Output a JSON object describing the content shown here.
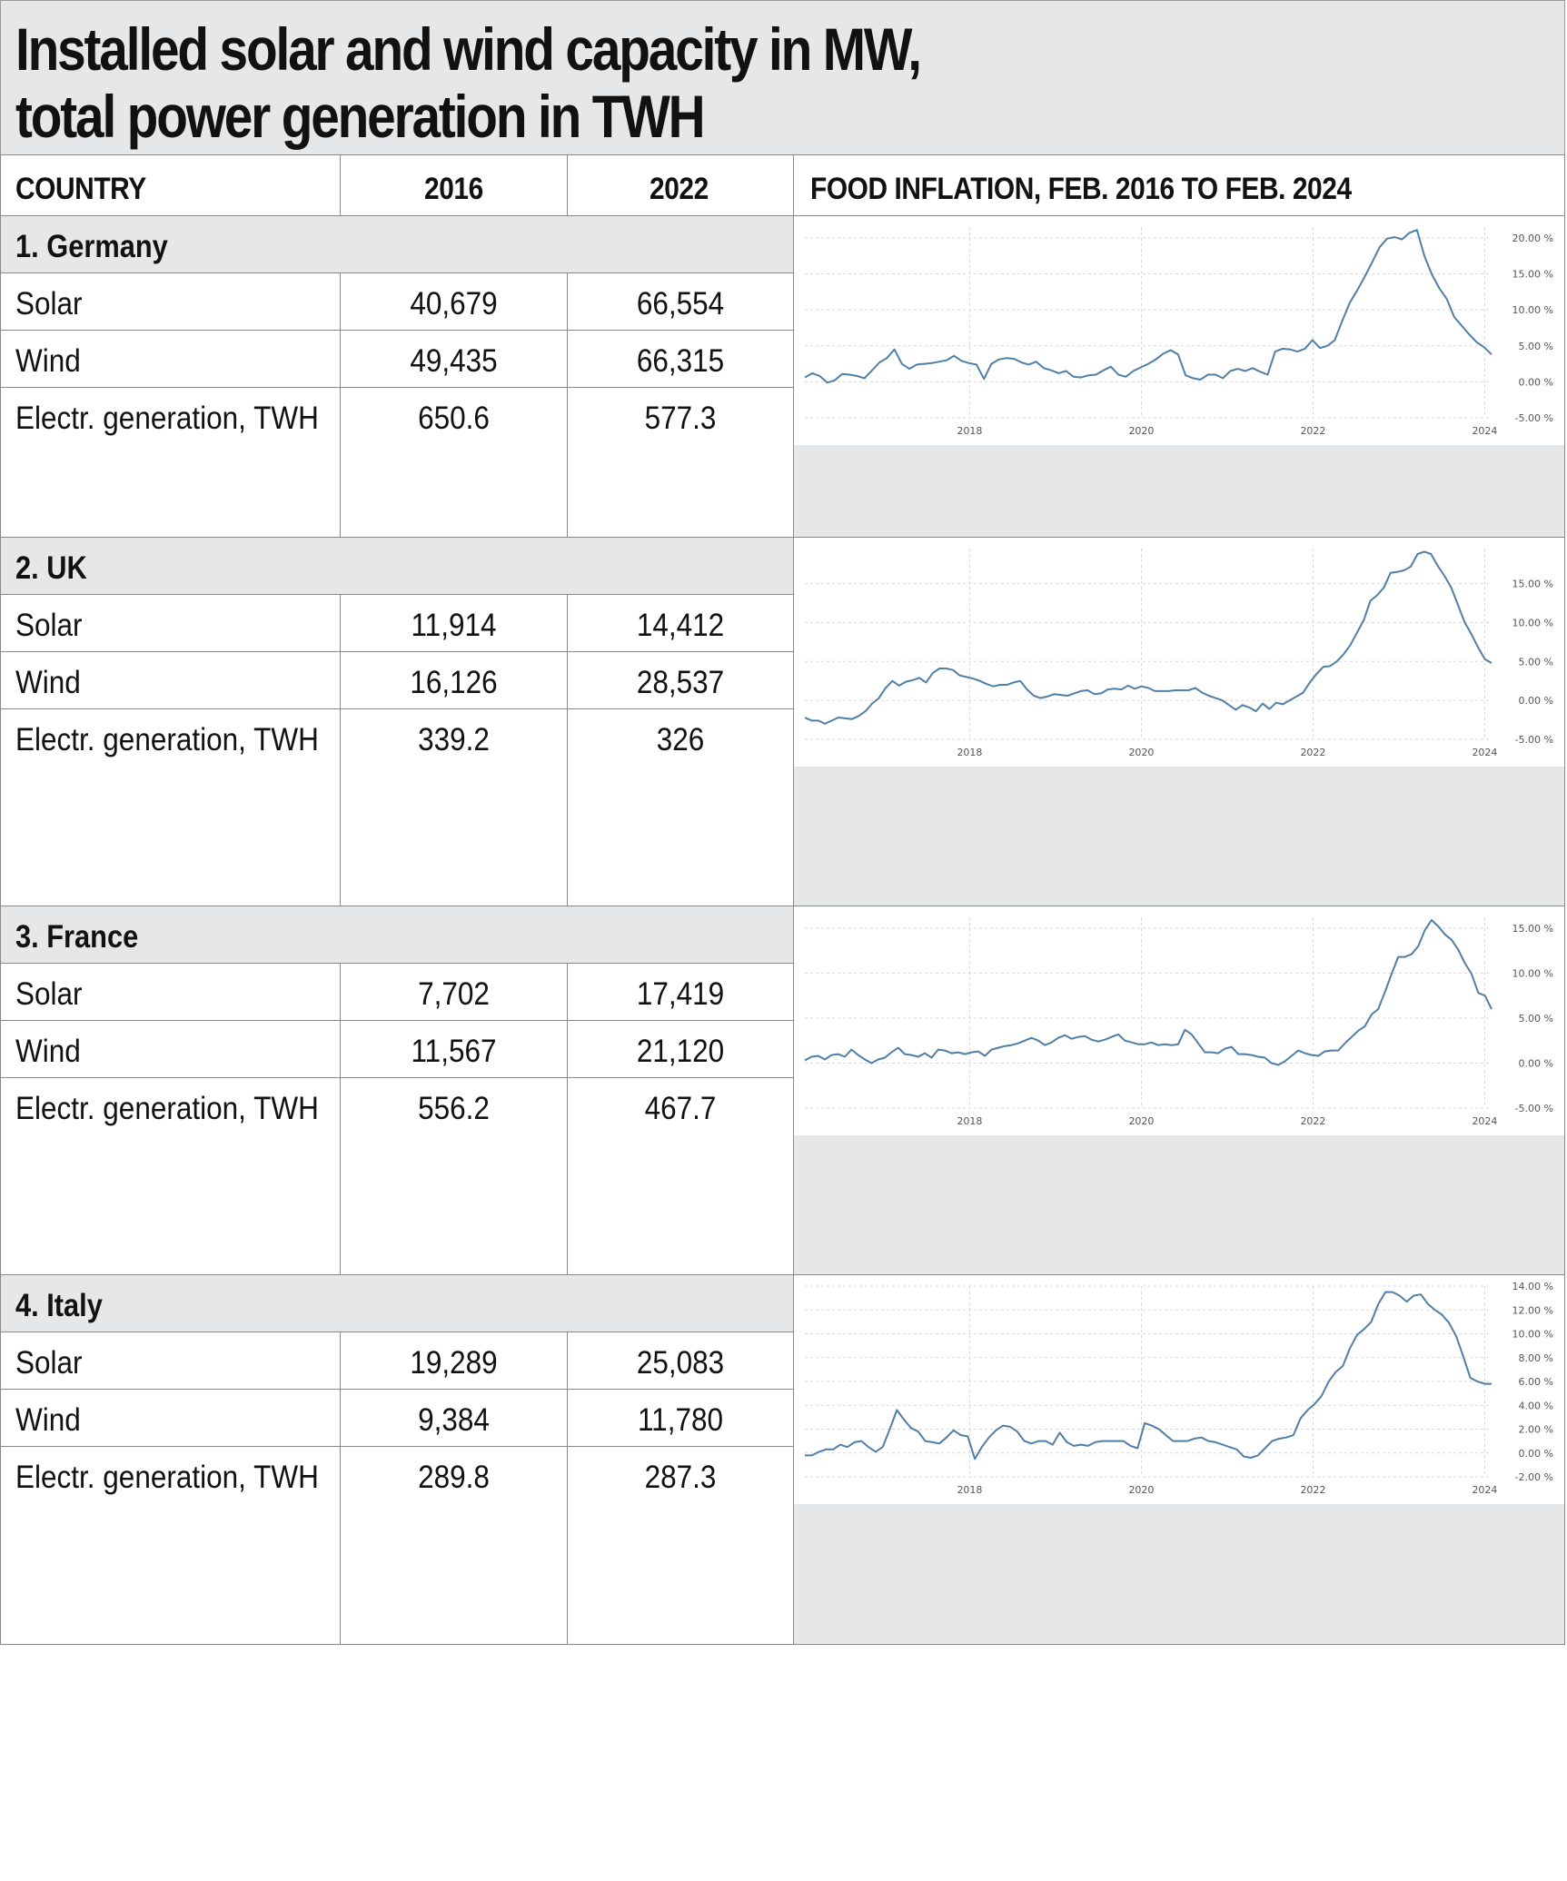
{
  "title": {
    "line1": "Installed solar and wind capacity in MW,",
    "line2": "total power generation in TWH"
  },
  "header": {
    "country": "COUNTRY",
    "year1": "2016",
    "year2": "2022",
    "chart": "FOOD INFLATION, FEB. 2016 TO FEB. 2024"
  },
  "countries": [
    {
      "name": "1. Germany",
      "rows": [
        {
          "label": "Solar",
          "v2016": "40,679",
          "v2022": "66,554"
        },
        {
          "label": "Wind",
          "v2016": "49,435",
          "v2022": "66,315"
        },
        {
          "label": " Electr. generation, TWH",
          "v2016": "650.6",
          "v2022": "577.3"
        }
      ]
    },
    {
      "name": "2. UK",
      "rows": [
        {
          "label": "Solar",
          "v2016": "11,914",
          "v2022": "14,412"
        },
        {
          "label": "Wind",
          "v2016": "16,126",
          "v2022": "28,537"
        },
        {
          "label": "Electr. generation, TWH",
          "v2016": "339.2",
          "v2022": "326"
        }
      ]
    },
    {
      "name": "3. France",
      "rows": [
        {
          "label": "Solar",
          "v2016": "7,702",
          "v2022": "17,419"
        },
        {
          "label": "Wind",
          "v2016": "11,567",
          "v2022": "21,120"
        },
        {
          "label": "Electr. generation, TWH",
          "v2016": "556.2",
          "v2022": "467.7"
        }
      ]
    },
    {
      "name": "4. Italy",
      "rows": [
        {
          "label": "Solar",
          "v2016": "19,289",
          "v2022": "25,083"
        },
        {
          "label": "Wind",
          "v2016": "9,384",
          "v2022": "11,780"
        },
        {
          "label": "Electr. generation, TWH",
          "v2016": "289.8",
          "v2022": "287.3"
        }
      ]
    }
  ],
  "chart_data": [
    {
      "type": "line",
      "country": "1. Germany",
      "line_color": "#4f7fa8",
      "x_start": 2016.08,
      "x_end": 2024.08,
      "xticks": [
        "2018",
        "2020",
        "2022",
        "2024"
      ],
      "xtick_values": [
        2018,
        2020,
        2022,
        2024
      ],
      "yticks": [
        "20.00 %",
        "15.00 %",
        "10.00 %",
        "5.00 %",
        "0.00 %",
        "-5.00 %"
      ],
      "ytick_values": [
        20,
        15,
        10,
        5,
        0,
        -5
      ],
      "ylim": [
        -5,
        21.5
      ],
      "grid": true,
      "values": [
        0.6,
        1.2,
        0.8,
        -0.1,
        0.2,
        1.1,
        1.0,
        0.8,
        0.5,
        1.6,
        2.7,
        3.3,
        4.5,
        2.5,
        1.8,
        2.4,
        2.5,
        2.6,
        2.8,
        3.0,
        3.6,
        2.9,
        2.6,
        2.4,
        0.4,
        2.5,
        3.1,
        3.3,
        3.2,
        2.7,
        2.4,
        2.8,
        1.9,
        1.6,
        1.2,
        1.5,
        0.7,
        0.6,
        0.9,
        1.0,
        1.6,
        2.1,
        1.0,
        0.7,
        1.5,
        2.0,
        2.5,
        3.1,
        3.9,
        4.4,
        3.8,
        0.9,
        0.5,
        0.3,
        1.0,
        1.0,
        0.5,
        1.5,
        1.8,
        1.5,
        1.9,
        1.4,
        1.0,
        4.2,
        4.6,
        4.5,
        4.2,
        4.6,
        5.8,
        4.7,
        5.0,
        5.8,
        8.5,
        11.0,
        12.7,
        14.6,
        16.6,
        18.7,
        19.9,
        20.1,
        19.8,
        20.7,
        21.1,
        17.5,
        14.9,
        13.0,
        11.5,
        9.0,
        7.8,
        6.6,
        5.5,
        4.8,
        3.8
      ]
    },
    {
      "type": "line",
      "country": "2. UK",
      "line_color": "#4f7fa8",
      "x_start": 2016.08,
      "x_end": 2024.08,
      "xticks": [
        "2018",
        "2020",
        "2022",
        "2024"
      ],
      "xtick_values": [
        2018,
        2020,
        2022,
        2024
      ],
      "yticks": [
        "15.00 %",
        "10.00 %",
        "5.00 %",
        "0.00 %",
        "-5.00 %"
      ],
      "ytick_values": [
        15,
        10,
        5,
        0,
        -5
      ],
      "ylim": [
        -5,
        19.5
      ],
      "grid": true,
      "values": [
        -2.2,
        -2.6,
        -2.6,
        -3.0,
        -2.6,
        -2.2,
        -2.3,
        -2.4,
        -2.0,
        -1.4,
        -0.4,
        0.3,
        1.6,
        2.5,
        1.9,
        2.4,
        2.6,
        2.9,
        2.3,
        3.5,
        4.1,
        4.1,
        3.9,
        3.2,
        3.0,
        2.8,
        2.5,
        2.1,
        1.8,
        2.0,
        2.0,
        2.3,
        2.5,
        1.4,
        0.6,
        0.3,
        0.5,
        0.8,
        0.7,
        0.6,
        0.9,
        1.2,
        1.3,
        0.8,
        0.9,
        1.4,
        1.5,
        1.4,
        1.9,
        1.5,
        1.8,
        1.6,
        1.2,
        1.2,
        1.2,
        1.3,
        1.3,
        1.3,
        1.6,
        1.0,
        0.6,
        0.3,
        0.0,
        -0.6,
        -1.2,
        -0.6,
        -0.9,
        -1.4,
        -0.4,
        -1.1,
        -0.3,
        -0.5,
        0.0,
        0.5,
        1.0,
        2.3,
        3.4,
        4.3,
        4.4,
        5.0,
        5.9,
        7.1,
        8.7,
        10.3,
        12.8,
        13.5,
        14.5,
        16.4,
        16.5,
        16.7,
        17.2,
        18.8,
        19.1,
        18.8,
        17.3,
        16.0,
        14.5,
        12.3,
        10.0,
        8.5,
        6.8,
        5.3,
        4.8
      ]
    },
    {
      "type": "line",
      "country": "3. France",
      "line_color": "#4f7fa8",
      "x_start": 2016.08,
      "x_end": 2024.08,
      "xticks": [
        "2018",
        "2020",
        "2022",
        "2024"
      ],
      "xtick_values": [
        2018,
        2020,
        2022,
        2024
      ],
      "yticks": [
        "15.00 %",
        "10.00 %",
        "5.00 %",
        "0.00 %",
        "-5.00 %"
      ],
      "ytick_values": [
        15,
        10,
        5,
        0,
        -5
      ],
      "ylim": [
        -5,
        16.2
      ],
      "grid": true,
      "values": [
        0.3,
        0.7,
        0.8,
        0.4,
        0.9,
        1.0,
        0.7,
        1.5,
        0.9,
        0.4,
        0.0,
        0.4,
        0.6,
        1.2,
        1.7,
        1.0,
        0.9,
        0.7,
        1.1,
        0.6,
        1.5,
        1.4,
        1.1,
        1.2,
        1.0,
        1.2,
        1.3,
        0.8,
        1.5,
        1.7,
        1.9,
        2.0,
        2.2,
        2.5,
        2.8,
        2.5,
        2.0,
        2.3,
        2.8,
        3.1,
        2.7,
        2.9,
        3.0,
        2.6,
        2.4,
        2.6,
        2.9,
        3.2,
        2.5,
        2.3,
        2.1,
        2.1,
        2.3,
        2.0,
        2.1,
        2.0,
        2.1,
        3.7,
        3.2,
        2.2,
        1.2,
        1.2,
        1.1,
        1.6,
        1.8,
        1.0,
        1.0,
        0.9,
        0.7,
        0.6,
        0.0,
        -0.2,
        0.2,
        0.8,
        1.4,
        1.1,
        0.9,
        0.8,
        1.3,
        1.4,
        1.4,
        2.2,
        2.9,
        3.6,
        4.1,
        5.4,
        6.0,
        7.9,
        9.9,
        11.8,
        11.8,
        12.1,
        13.0,
        14.8,
        15.9,
        15.2,
        14.3,
        13.7,
        12.6,
        11.1,
        9.9,
        7.8,
        7.5,
        6.0
      ]
    },
    {
      "type": "line",
      "country": "4. Italy",
      "line_color": "#4f7fa8",
      "x_start": 2016.08,
      "x_end": 2024.08,
      "xticks": [
        "2018",
        "2020",
        "2022",
        "2024"
      ],
      "xtick_values": [
        2018,
        2020,
        2022,
        2024
      ],
      "yticks": [
        "14.00 %",
        "12.00 %",
        "10.00 %",
        "8.00 %",
        "6.00 %",
        "4.00 %",
        "2.00 %",
        "0.00 %",
        "-2.00 %"
      ],
      "ytick_values": [
        14,
        12,
        10,
        8,
        6,
        4,
        2,
        0,
        -2
      ],
      "ylim": [
        -2,
        14
      ],
      "grid": true,
      "values": [
        -0.2,
        -0.2,
        0.1,
        0.3,
        0.3,
        0.7,
        0.5,
        0.9,
        1.0,
        0.5,
        0.1,
        0.5,
        2.0,
        3.6,
        2.8,
        2.1,
        1.8,
        1.0,
        0.9,
        0.8,
        1.3,
        1.9,
        1.5,
        1.4,
        -0.5,
        0.5,
        1.3,
        1.9,
        2.3,
        2.2,
        1.8,
        1.0,
        0.8,
        1.0,
        1.0,
        0.7,
        1.7,
        0.9,
        0.6,
        0.7,
        0.6,
        0.9,
        1.0,
        1.0,
        1.0,
        1.0,
        0.6,
        0.4,
        2.5,
        2.3,
        2.0,
        1.5,
        1.0,
        1.0,
        1.0,
        1.2,
        1.3,
        1.0,
        0.9,
        0.7,
        0.5,
        0.3,
        -0.3,
        -0.4,
        -0.2,
        0.4,
        1.0,
        1.2,
        1.3,
        1.5,
        2.9,
        3.6,
        4.1,
        4.8,
        6.0,
        6.8,
        7.3,
        8.8,
        9.9,
        10.4,
        11.0,
        12.5,
        13.5,
        13.5,
        13.2,
        12.7,
        13.2,
        13.3,
        12.5,
        12.0,
        11.6,
        10.9,
        9.8,
        8.1,
        6.3,
        6.0,
        5.8,
        5.8
      ]
    }
  ]
}
